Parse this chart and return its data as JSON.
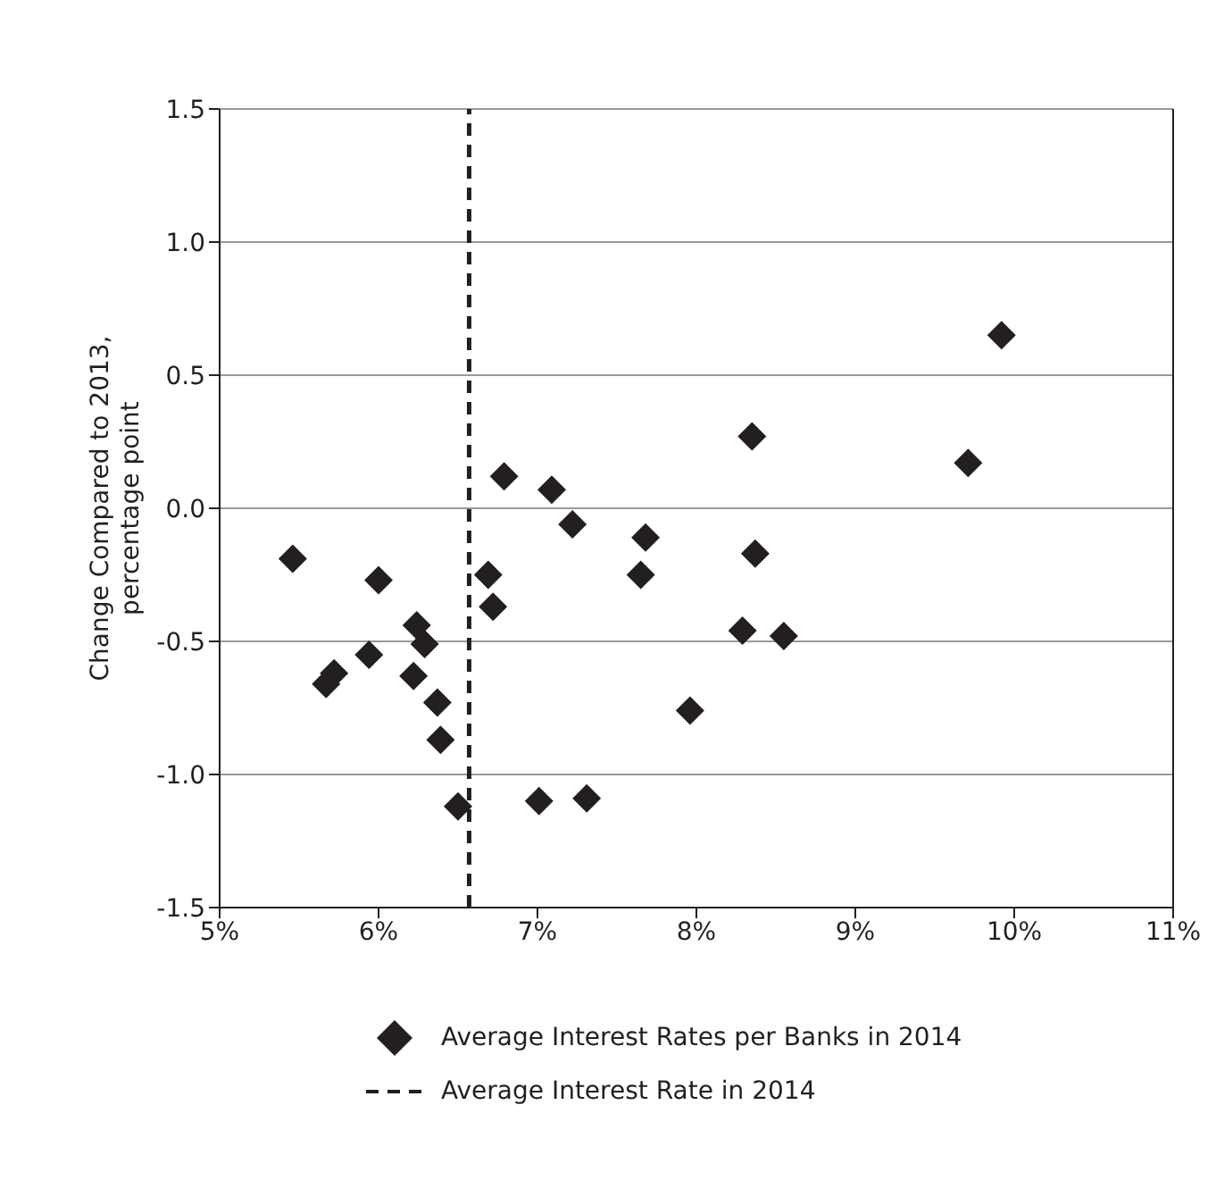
{
  "chart_data": {
    "type": "scatter",
    "ylabel": "Change Compared to 2013, percentage point",
    "series": [
      {
        "name": "Average Interest Rates per Banks in 2014",
        "color": "#231f20",
        "marker": "diamond",
        "x": [
          5.46,
          6.0,
          6.24,
          6.29,
          5.94,
          5.72,
          5.67,
          6.22,
          6.37,
          6.39,
          6.5,
          6.69,
          6.72,
          6.79,
          7.09,
          7.22,
          7.68,
          7.65,
          7.01,
          7.31,
          7.96,
          8.29,
          8.55,
          8.37,
          8.35,
          9.71,
          9.92
        ],
        "values": [
          -0.19,
          -0.27,
          -0.44,
          -0.51,
          -0.55,
          -0.62,
          -0.66,
          -0.63,
          -0.73,
          -0.87,
          -1.12,
          -0.25,
          -0.37,
          0.12,
          0.07,
          -0.06,
          -0.11,
          -0.25,
          -1.1,
          -1.09,
          -0.76,
          -0.46,
          -0.48,
          -0.17,
          0.27,
          0.17,
          0.65
        ]
      }
    ],
    "ref_lines": [
      {
        "axis": "x",
        "value": 6.57,
        "label": "Average Interest Rate in 2014",
        "color": "#231f20",
        "line_style": "dashed"
      }
    ],
    "xlim": [
      5,
      11
    ],
    "xticks": [
      {
        "value": 5,
        "label": "5%"
      },
      {
        "value": 6,
        "label": "6%"
      },
      {
        "value": 7,
        "label": "7%"
      },
      {
        "value": 8,
        "label": "8%"
      },
      {
        "value": 9,
        "label": "9%"
      },
      {
        "value": 10,
        "label": "10%"
      },
      {
        "value": 11,
        "label": "11%"
      }
    ],
    "ylim": [
      -1.5,
      1.5
    ],
    "yticks": [
      {
        "value": -1.5,
        "label": "-1.5"
      },
      {
        "value": -1,
        "label": "-1.0"
      },
      {
        "value": -0.5,
        "label": "-0.5"
      },
      {
        "value": 0,
        "label": "0.0"
      },
      {
        "value": 0.5,
        "label": "0.5"
      },
      {
        "value": 1,
        "label": "1.0"
      },
      {
        "value": 1.5,
        "label": "1.5"
      }
    ],
    "grid": "y",
    "legend": "bottom"
  }
}
